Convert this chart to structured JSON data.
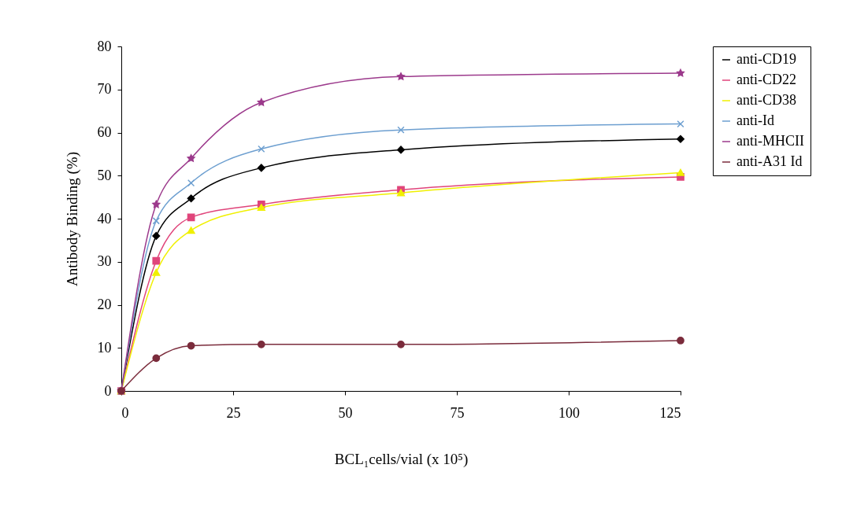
{
  "chart_data": {
    "type": "line",
    "xlabel": "BCL₁cells/vial (x 10⁵)",
    "ylabel": "Antibody Binding (%)",
    "x": [
      0,
      7.8,
      15.6,
      31.3,
      62.5,
      125
    ],
    "xlim": [
      0,
      125
    ],
    "xticks": [
      0,
      25,
      50,
      75,
      100,
      125
    ],
    "ylim": [
      0,
      80
    ],
    "yticks": [
      0,
      10,
      20,
      30,
      40,
      50,
      60,
      70,
      80
    ],
    "grid": false,
    "legend": "top right",
    "series": [
      {
        "name": "anti-CD19",
        "color": "#000000",
        "marker": "diamond",
        "values": [
          0,
          36,
          44.7,
          51.8,
          56,
          58.5
        ]
      },
      {
        "name": "anti-CD22",
        "color": "#e0457b",
        "marker": "square",
        "values": [
          0,
          30.2,
          40.3,
          43.3,
          46.7,
          49.7
        ]
      },
      {
        "name": "anti-CD38",
        "color": "#f0f000",
        "marker": "triangle",
        "values": [
          0,
          27.5,
          37.3,
          42.6,
          46,
          50.7
        ]
      },
      {
        "name": "anti-Id",
        "color": "#6d9fd0",
        "marker": "cross",
        "values": [
          0,
          39.5,
          48.3,
          56.2,
          60.6,
          62
        ]
      },
      {
        "name": "anti-MHCII",
        "color": "#9c3a8c",
        "marker": "star",
        "values": [
          0,
          43.3,
          54,
          67,
          73,
          73.8
        ]
      },
      {
        "name": "anti-A31 Id",
        "color": "#7b2c3c",
        "marker": "circle",
        "values": [
          0,
          7.6,
          10.5,
          10.8,
          10.8,
          11.7
        ]
      }
    ]
  }
}
